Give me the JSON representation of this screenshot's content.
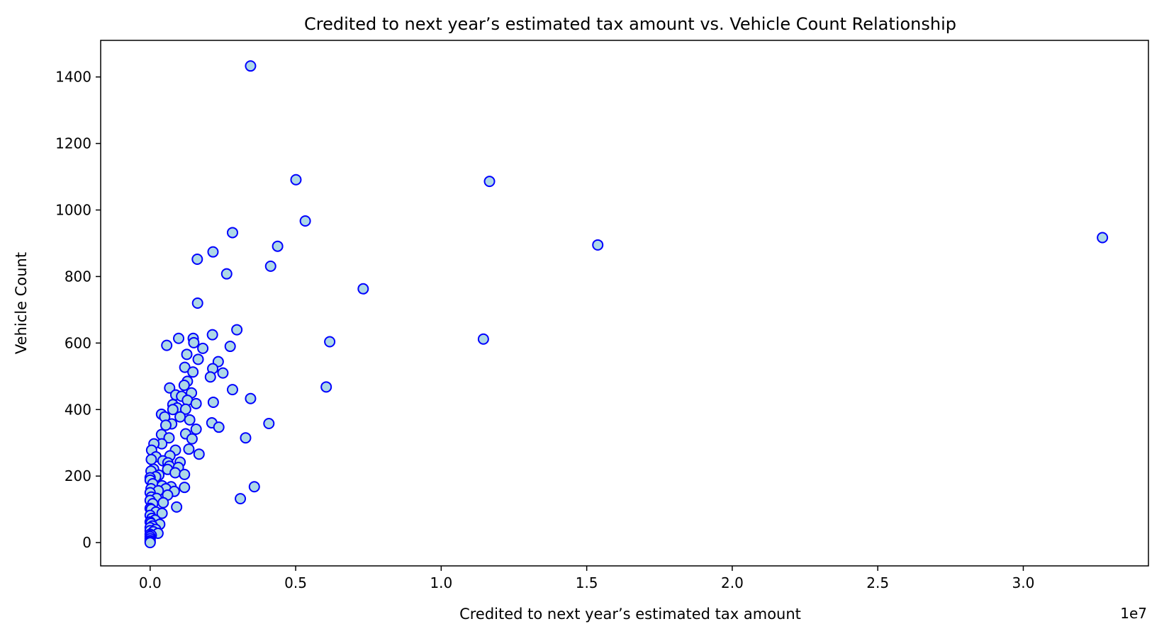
{
  "chart_data": {
    "type": "scatter",
    "title": "Credited to next year’s estimated tax amount vs. Vehicle Count Relationship",
    "xlabel": "Credited to next year’s estimated tax amount",
    "ylabel": "Vehicle Count",
    "x_offset_label": "1e7",
    "xlim": [
      -0.17,
      3.43
    ],
    "ylim": [
      -70,
      1510
    ],
    "x_ticks": [
      0.0,
      0.5,
      1.0,
      1.5,
      2.0,
      2.5,
      3.0
    ],
    "x_tick_labels": [
      "0.0",
      "0.5",
      "1.0",
      "1.5",
      "2.0",
      "2.5",
      "3.0"
    ],
    "y_ticks": [
      0,
      200,
      400,
      600,
      800,
      1000,
      1200,
      1400
    ],
    "y_tick_labels": [
      "0",
      "200",
      "400",
      "600",
      "800",
      "1000",
      "1200",
      "1400"
    ],
    "grid": false,
    "marker_fill": "#add8e6",
    "marker_edge": "#0000ff",
    "points": [
      [
        0.345,
        1433
      ],
      [
        0.501,
        1091
      ],
      [
        1.166,
        1086
      ],
      [
        0.533,
        967
      ],
      [
        0.283,
        932
      ],
      [
        3.272,
        917
      ],
      [
        1.538,
        895
      ],
      [
        0.438,
        891
      ],
      [
        0.216,
        874
      ],
      [
        0.162,
        852
      ],
      [
        0.414,
        831
      ],
      [
        0.263,
        808
      ],
      [
        0.732,
        763
      ],
      [
        0.163,
        720
      ],
      [
        0.298,
        640
      ],
      [
        0.214,
        625
      ],
      [
        0.098,
        614
      ],
      [
        0.148,
        614
      ],
      [
        1.145,
        612
      ],
      [
        0.617,
        604
      ],
      [
        0.15,
        601
      ],
      [
        0.057,
        593
      ],
      [
        0.275,
        590
      ],
      [
        0.181,
        584
      ],
      [
        0.126,
        566
      ],
      [
        0.165,
        551
      ],
      [
        0.234,
        544
      ],
      [
        0.119,
        527
      ],
      [
        0.215,
        523
      ],
      [
        0.147,
        513
      ],
      [
        0.25,
        510
      ],
      [
        0.207,
        498
      ],
      [
        0.128,
        485
      ],
      [
        0.117,
        473
      ],
      [
        0.605,
        468
      ],
      [
        0.067,
        465
      ],
      [
        0.283,
        460
      ],
      [
        0.142,
        450
      ],
      [
        0.088,
        444
      ],
      [
        0.108,
        440
      ],
      [
        0.345,
        433
      ],
      [
        0.128,
        428
      ],
      [
        0.217,
        422
      ],
      [
        0.078,
        415
      ],
      [
        0.158,
        418
      ],
      [
        0.093,
        405
      ],
      [
        0.078,
        400
      ],
      [
        0.122,
        401
      ],
      [
        0.039,
        386
      ],
      [
        0.05,
        378
      ],
      [
        0.103,
        378
      ],
      [
        0.136,
        369
      ],
      [
        0.074,
        357
      ],
      [
        0.054,
        353
      ],
      [
        0.212,
        360
      ],
      [
        0.408,
        358
      ],
      [
        0.236,
        347
      ],
      [
        0.158,
        341
      ],
      [
        0.039,
        325
      ],
      [
        0.122,
        327
      ],
      [
        0.328,
        315
      ],
      [
        0.065,
        315
      ],
      [
        0.144,
        312
      ],
      [
        0.04,
        297
      ],
      [
        0.013,
        297
      ],
      [
        0.005,
        278
      ],
      [
        0.087,
        278
      ],
      [
        0.133,
        281
      ],
      [
        0.168,
        266
      ],
      [
        0.068,
        261
      ],
      [
        0.02,
        258
      ],
      [
        0.004,
        250
      ],
      [
        0.044,
        246
      ],
      [
        0.103,
        242
      ],
      [
        0.061,
        240
      ],
      [
        0.066,
        230
      ],
      [
        0.097,
        226
      ],
      [
        0.012,
        221
      ],
      [
        0.06,
        220
      ],
      [
        0.003,
        215
      ],
      [
        0.086,
        210
      ],
      [
        0.118,
        205
      ],
      [
        0.03,
        203
      ],
      [
        0.019,
        198
      ],
      [
        0.0,
        195
      ],
      [
        0.0,
        188
      ],
      [
        0.009,
        177
      ],
      [
        0.041,
        171
      ],
      [
        0.072,
        168
      ],
      [
        0.118,
        166
      ],
      [
        0.003,
        162
      ],
      [
        0.054,
        162
      ],
      [
        0.028,
        156
      ],
      [
        0.083,
        154
      ],
      [
        0.0,
        150
      ],
      [
        0.06,
        143
      ],
      [
        0.004,
        137
      ],
      [
        0.022,
        133
      ],
      [
        0.0,
        127
      ],
      [
        0.045,
        120
      ],
      [
        0.009,
        117
      ],
      [
        0.358,
        168
      ],
      [
        0.31,
        132
      ],
      [
        0.091,
        107
      ],
      [
        0.0,
        103
      ],
      [
        0.004,
        100
      ],
      [
        0.02,
        92
      ],
      [
        0.041,
        88
      ],
      [
        0.0,
        82
      ],
      [
        0.006,
        73
      ],
      [
        0.017,
        68
      ],
      [
        0.0,
        62
      ],
      [
        0.003,
        58
      ],
      [
        0.033,
        55
      ],
      [
        0.008,
        50
      ],
      [
        0.0,
        45
      ],
      [
        0.019,
        40
      ],
      [
        0.0,
        36
      ],
      [
        0.011,
        33
      ],
      [
        0.027,
        28
      ],
      [
        0.0,
        25
      ],
      [
        0.004,
        22
      ],
      [
        0.0,
        18
      ],
      [
        0.0,
        12
      ],
      [
        0.0,
        6
      ],
      [
        0.0,
        2
      ],
      [
        0.0,
        0
      ]
    ]
  }
}
